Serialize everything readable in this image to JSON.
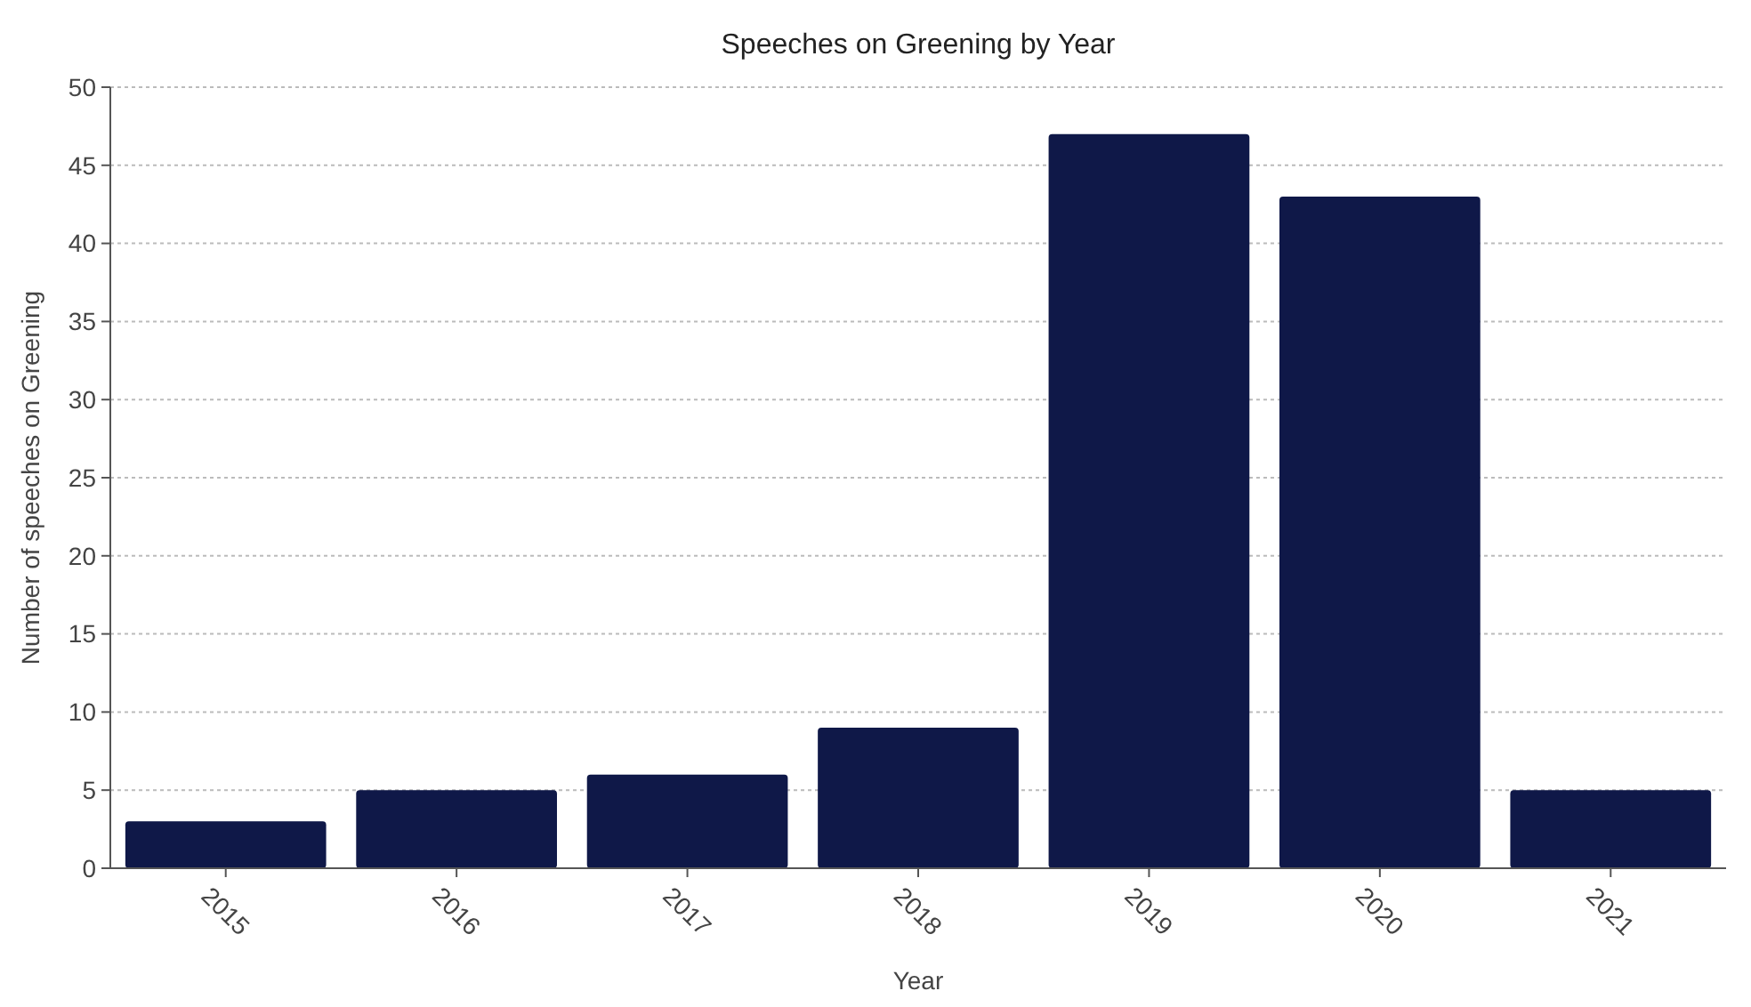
{
  "chart_data": {
    "type": "bar",
    "title": "Speeches on Greening by Year",
    "xlabel": "Year",
    "ylabel": "Number of speeches on Greening",
    "categories": [
      "2015",
      "2016",
      "2017",
      "2018",
      "2019",
      "2020",
      "2021"
    ],
    "values": [
      3,
      5,
      6,
      9,
      47,
      43,
      5
    ],
    "color": "#0f1848",
    "ylim": [
      0,
      50
    ],
    "yticks": [
      0,
      5,
      10,
      15,
      20,
      25,
      30,
      35,
      40,
      45,
      50
    ],
    "grid": "y"
  }
}
